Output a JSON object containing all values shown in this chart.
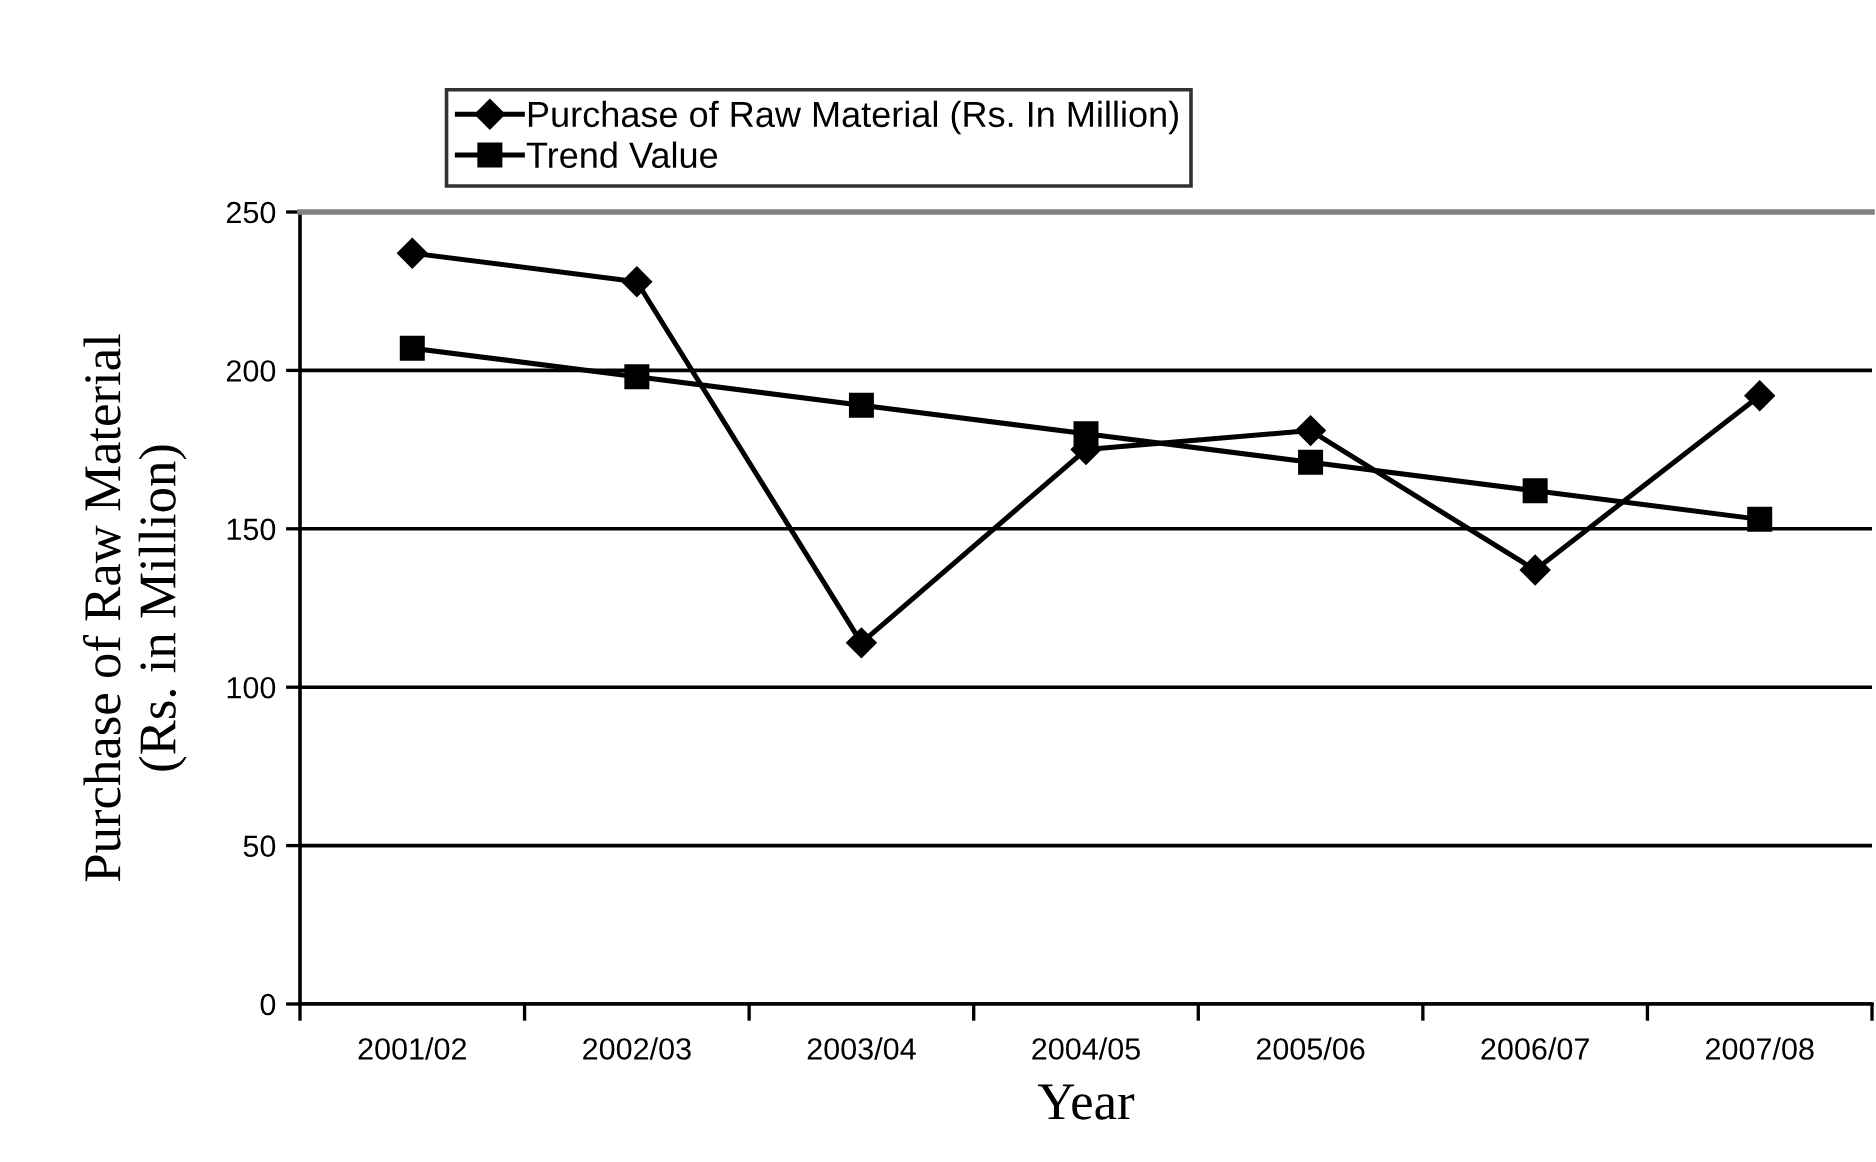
{
  "chart_data": {
    "type": "line",
    "xlabel": "Year",
    "ylabel": "Purchase of Raw Material\n(Rs. in Million)",
    "categories": [
      "2001/02",
      "2002/03",
      "2003/04",
      "2004/05",
      "2005/06",
      "2006/07",
      "2007/08"
    ],
    "series": [
      {
        "name": "Purchase of Raw Material (Rs. In Million)",
        "color": "#000000",
        "marker": "diamond",
        "values": [
          237,
          228,
          114,
          175,
          181,
          137,
          192
        ]
      },
      {
        "name": "Trend Value",
        "color": "#000000",
        "marker": "square",
        "values": [
          207,
          198,
          189,
          180,
          171,
          162,
          153
        ]
      }
    ],
    "ylim": [
      0,
      250
    ],
    "yticks": [
      0,
      50,
      100,
      150,
      200,
      250
    ],
    "grid": "y",
    "legend": "top",
    "line_style": "solid"
  }
}
